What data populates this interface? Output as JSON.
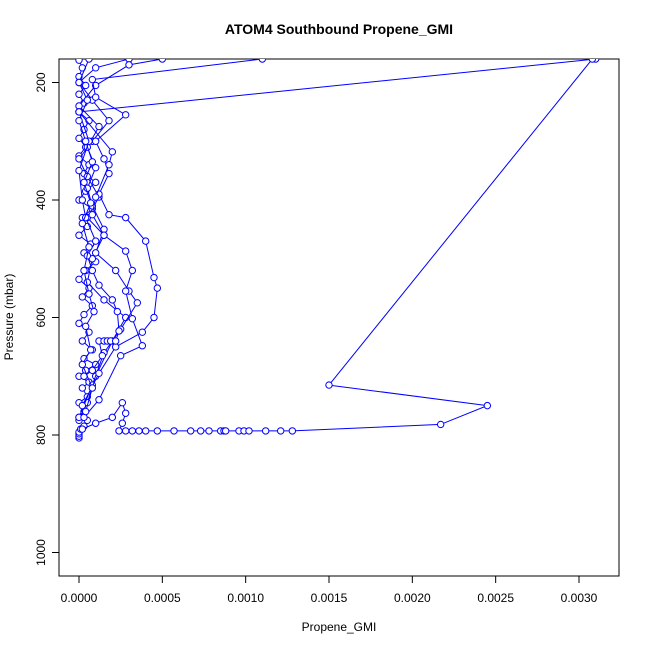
{
  "chart_data": {
    "type": "line",
    "title": "ATOM4 Southbound Propene_GMI",
    "xlabel": "Propene_GMI",
    "ylabel": "Pressure (mbar)",
    "xlim": [
      -0.00012,
      0.00324
    ],
    "ylim": [
      1040,
      160
    ],
    "y_reversed": true,
    "grid": false,
    "x_ticks": [
      {
        "value": 0.0,
        "label": "0.0000"
      },
      {
        "value": 0.0005,
        "label": "0.0005"
      },
      {
        "value": 0.001,
        "label": "0.0010"
      },
      {
        "value": 0.0015,
        "label": "0.0015"
      },
      {
        "value": 0.002,
        "label": "0.0020"
      },
      {
        "value": 0.0025,
        "label": "0.0025"
      },
      {
        "value": 0.003,
        "label": "0.0030"
      }
    ],
    "y_ticks": [
      {
        "value": 200,
        "label": "200"
      },
      {
        "value": 400,
        "label": "400"
      },
      {
        "value": 600,
        "label": "600"
      },
      {
        "value": 800,
        "label": "800"
      },
      {
        "value": 1000,
        "label": "1000"
      }
    ],
    "color": "#0000ff",
    "series": [
      {
        "points": [
          [
            0.0,
            805
          ],
          [
            0.0,
            802
          ],
          [
            0.0,
            798
          ],
          [
            0.0,
            795
          ],
          [
            1e-05,
            790
          ],
          [
            3e-05,
            785
          ],
          [
            5e-05,
            775
          ],
          [
            0.0,
            770
          ],
          [
            3e-05,
            760
          ],
          [
            0.0,
            745
          ],
          [
            5e-05,
            735
          ],
          [
            2e-05,
            720
          ],
          [
            6e-05,
            710
          ],
          [
            0.0,
            700
          ],
          [
            4e-05,
            690
          ],
          [
            0.0001,
            680
          ],
          [
            3e-05,
            670
          ],
          [
            8e-05,
            655
          ],
          [
            2e-05,
            640
          ],
          [
            6e-05,
            625
          ],
          [
            0.0,
            610
          ],
          [
            3e-05,
            595
          ],
          [
            8e-05,
            580
          ],
          [
            2e-05,
            565
          ],
          [
            6e-05,
            550
          ],
          [
            0.0,
            535
          ],
          [
            4e-05,
            520
          ],
          [
            0.0001,
            505
          ],
          [
            3e-05,
            490
          ],
          [
            7e-05,
            475
          ],
          [
            0.0,
            460
          ],
          [
            5e-05,
            445
          ],
          [
            2e-05,
            430
          ],
          [
            8e-05,
            415
          ],
          [
            0.0,
            400
          ],
          [
            4e-05,
            385
          ],
          [
            0.0001,
            370
          ],
          [
            3e-05,
            355
          ],
          [
            6e-05,
            340
          ],
          [
            0.0,
            325
          ],
          [
            4e-05,
            310
          ],
          [
            0.0,
            295
          ],
          [
            3e-05,
            280
          ],
          [
            6e-05,
            265
          ],
          [
            0.0,
            250
          ],
          [
            3e-05,
            235
          ],
          [
            0.0,
            220
          ],
          [
            4e-05,
            205
          ],
          [
            0.0,
            190
          ],
          [
            2e-05,
            175
          ],
          [
            0.0,
            162
          ]
        ]
      },
      {
        "points": [
          [
            0.0,
            775
          ],
          [
            5e-05,
            745
          ],
          [
            0.0001,
            700
          ],
          [
            0.0002,
            640
          ],
          [
            0.00028,
            600
          ],
          [
            0.00015,
            570
          ],
          [
            5e-05,
            540
          ],
          [
            8e-05,
            500
          ],
          [
            0.00015,
            460
          ],
          [
            5e-05,
            430
          ],
          [
            0.00012,
            395
          ],
          [
            5e-05,
            360
          ],
          [
            0.0,
            330
          ],
          [
            8e-05,
            300
          ],
          [
            0.00018,
            265
          ],
          [
            8e-05,
            230
          ],
          [
            0.0,
            200
          ],
          [
            0.0001,
            175
          ],
          [
            0.0003,
            160
          ]
        ]
      },
      {
        "points": [
          [
            0.0,
            770
          ],
          [
            8e-05,
            715
          ],
          [
            0.00015,
            660
          ],
          [
            0.00025,
            620
          ],
          [
            0.00035,
            575
          ],
          [
            0.0003,
            555
          ],
          [
            0.00022,
            520
          ],
          [
            0.0001,
            490
          ],
          [
            0.00015,
            450
          ],
          [
            8e-05,
            410
          ],
          [
            5e-05,
            380
          ],
          [
            0.0001,
            345
          ],
          [
            5e-05,
            310
          ],
          [
            0.00012,
            275
          ],
          [
            0.0,
            240
          ],
          [
            0.0001,
            205
          ],
          [
            0.0003,
            170
          ],
          [
            0.0005,
            160
          ]
        ]
      },
      {
        "points": [
          [
            2e-05,
            750
          ],
          [
            0.00012,
            695
          ],
          [
            0.00022,
            650
          ],
          [
            0.00038,
            625
          ],
          [
            0.00045,
            600
          ],
          [
            0.00047,
            550
          ],
          [
            0.00045,
            532
          ],
          [
            0.0004,
            470
          ],
          [
            0.00028,
            430
          ],
          [
            0.00018,
            425
          ],
          [
            0.00012,
            390
          ],
          [
            0.00018,
            355
          ],
          [
            0.00015,
            330
          ],
          [
            0.0001,
            300
          ],
          [
            0.00028,
            255
          ],
          [
            0.0001,
            225
          ],
          [
            8e-05,
            195
          ],
          [
            0.0011,
            160
          ]
        ]
      },
      {
        "points": [
          [
            3e-05,
            770
          ],
          [
            0.00012,
            740
          ],
          [
            0.00025,
            665
          ],
          [
            0.00038,
            648
          ],
          [
            0.00032,
            602
          ],
          [
            0.00028,
            555
          ],
          [
            0.00032,
            520
          ],
          [
            0.00028,
            487
          ],
          [
            0.00015,
            460
          ],
          [
            8e-05,
            425
          ],
          [
            0.0001,
            395
          ],
          [
            0.00018,
            340
          ],
          [
            0.0002,
            318
          ],
          [
            0.0,
            250
          ],
          [
            0.0031,
            160
          ]
        ]
      },
      {
        "points": [
          [
            2e-05,
            790
          ],
          [
            0.0001,
            780
          ],
          [
            0.0002,
            770
          ],
          [
            0.00026,
            745
          ],
          [
            0.00028,
            763
          ],
          [
            0.00026,
            780
          ],
          [
            0.00024,
            793
          ],
          [
            0.00028,
            793
          ],
          [
            0.00032,
            793
          ],
          [
            0.00036,
            793
          ],
          [
            0.0004,
            793
          ],
          [
            0.00047,
            793
          ],
          [
            0.00057,
            793
          ],
          [
            0.00067,
            793
          ],
          [
            0.00073,
            793
          ],
          [
            0.00078,
            793
          ],
          [
            0.00085,
            793
          ],
          [
            0.00087,
            793
          ],
          [
            0.00088,
            793
          ],
          [
            0.00096,
            793
          ],
          [
            0.00099,
            793
          ],
          [
            0.00102,
            793
          ],
          [
            0.00112,
            793
          ],
          [
            0.00121,
            793
          ],
          [
            0.00128,
            793
          ],
          [
            0.00217,
            782
          ],
          [
            0.00245,
            750
          ],
          [
            0.0015,
            715
          ],
          [
            0.00308,
            160
          ]
        ]
      },
      {
        "points": [
          [
            3e-05,
            700
          ],
          [
            8e-05,
            690
          ],
          [
            0.00014,
            665
          ],
          [
            0.00012,
            640
          ],
          [
            0.00015,
            640
          ],
          [
            0.00017,
            640
          ],
          [
            0.00019,
            640
          ],
          [
            0.00022,
            640
          ],
          [
            0.00024,
            623
          ],
          [
            0.00023,
            590
          ],
          [
            0.0002,
            570
          ],
          [
            0.00012,
            545
          ],
          [
            8e-05,
            520
          ],
          [
            5e-05,
            495
          ],
          [
            0.0001,
            470
          ],
          [
            4e-05,
            430
          ],
          [
            2e-05,
            400
          ],
          [
            0.0,
            350
          ],
          [
            6e-05,
            300
          ],
          [
            0.0,
            250
          ]
        ]
      },
      {
        "points": [
          [
            4e-05,
            760
          ],
          [
            8e-05,
            720
          ],
          [
            2e-05,
            680
          ],
          [
            7e-05,
            655
          ],
          [
            4e-05,
            615
          ],
          [
            9e-05,
            590
          ],
          [
            6e-05,
            560
          ],
          [
            3e-05,
            520
          ],
          [
            6e-05,
            480
          ],
          [
            2e-05,
            440
          ],
          [
            7e-05,
            405
          ],
          [
            3e-05,
            370
          ],
          [
            8e-05,
            335
          ],
          [
            4e-05,
            300
          ],
          [
            0.0,
            265
          ],
          [
            5e-05,
            230
          ],
          [
            0.0,
            200
          ],
          [
            6e-05,
            160
          ]
        ]
      }
    ]
  }
}
